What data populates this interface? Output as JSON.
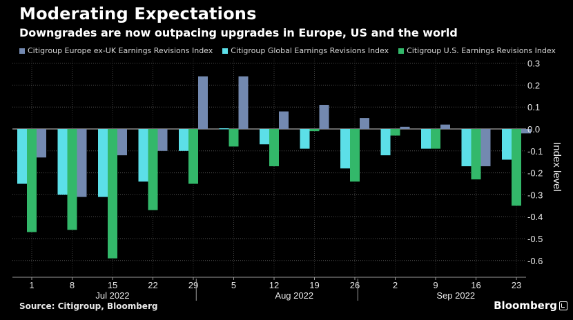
{
  "header": {
    "title": "Moderating Expectations",
    "subtitle": "Downgrades are now outpacing upgrades in Europe, US and the world"
  },
  "footer": {
    "source": "Source: Citigroup, Bloomberg",
    "brand": "Bloomberg"
  },
  "colors": {
    "europe": "#7389b0",
    "global": "#5cdfe8",
    "us": "#33b86a",
    "background": "#000000"
  },
  "chart_data": {
    "type": "bar",
    "title": "Moderating Expectations",
    "subtitle": "Downgrades are now outpacing upgrades in Europe, US and the world",
    "ylabel": "Index level",
    "ylim": [
      -0.65,
      0.32
    ],
    "yticks": [
      0.3,
      0.2,
      0.1,
      0.0,
      -0.1,
      -0.2,
      -0.3,
      -0.4,
      -0.5,
      -0.6
    ],
    "ytick_labels": [
      "0.3",
      "0.2",
      "0.1",
      "0.0",
      "-0.1",
      "-0.2",
      "-0.3",
      "-0.4",
      "-0.5",
      "-0.6"
    ],
    "categories": [
      "1",
      "8",
      "15",
      "22",
      "29",
      "5",
      "12",
      "19",
      "26",
      "2",
      "9",
      "16",
      "23"
    ],
    "months": [
      {
        "label": "Jul 2022",
        "start": 0,
        "end": 4
      },
      {
        "label": "Aug 2022",
        "start": 5,
        "end": 8
      },
      {
        "label": "Sep 2022",
        "start": 9,
        "end": 12
      }
    ],
    "series": [
      {
        "name": "Citigroup Global Earnings Revisions Index",
        "key": "global",
        "values": [
          -0.25,
          -0.3,
          -0.31,
          -0.24,
          -0.1,
          0.0,
          -0.07,
          -0.09,
          -0.18,
          -0.12,
          -0.09,
          -0.17,
          -0.14
        ]
      },
      {
        "name": "Citigroup U.S. Earnings Revisions Index",
        "key": "us",
        "values": [
          -0.47,
          -0.46,
          -0.59,
          -0.37,
          -0.25,
          -0.08,
          -0.17,
          -0.01,
          -0.24,
          -0.03,
          -0.09,
          -0.23,
          -0.35
        ]
      },
      {
        "name": "Citigroup Europe ex-UK Earnings Revisions Index",
        "key": "europe",
        "values": [
          -0.13,
          -0.31,
          -0.12,
          -0.1,
          0.24,
          0.24,
          0.08,
          0.11,
          0.05,
          0.01,
          0.02,
          -0.17,
          -0.02
        ]
      }
    ],
    "legend": [
      {
        "label": "Citigroup Europe ex-UK Earnings Revisions Index",
        "key": "europe"
      },
      {
        "label": "Citigroup Global Earnings Revisions Index",
        "key": "global"
      },
      {
        "label": "Citigroup U.S. Earnings Revisions Index",
        "key": "us"
      }
    ],
    "legend_position": "top-left",
    "grid": true
  }
}
